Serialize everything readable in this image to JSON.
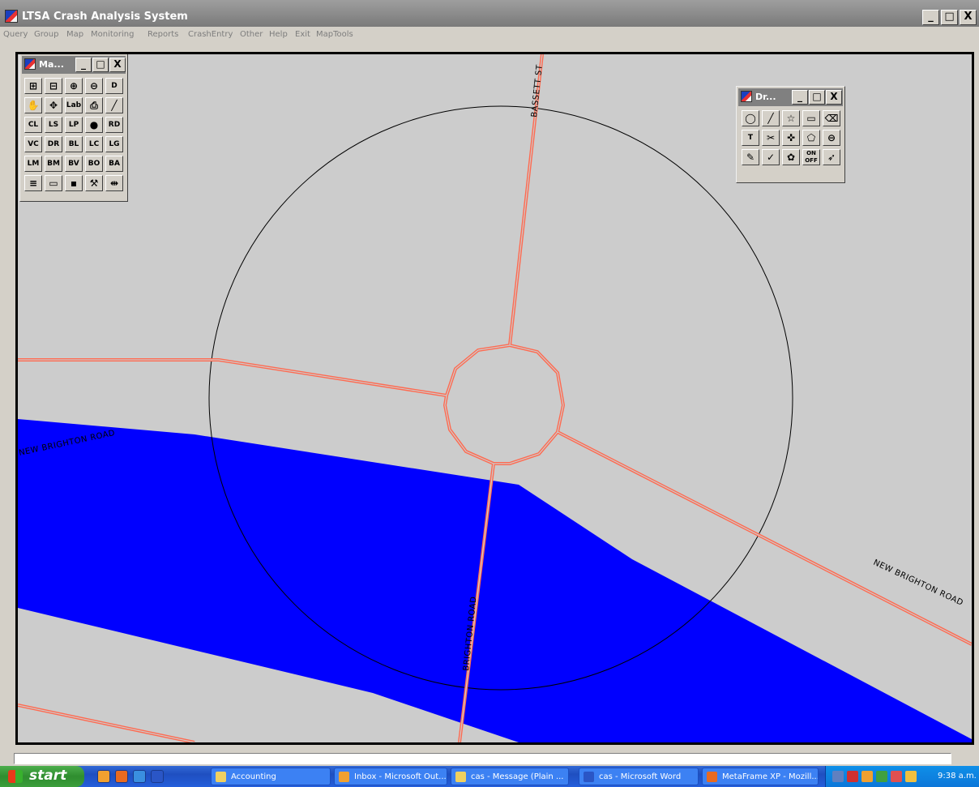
{
  "window": {
    "title": "LTSA Crash Analysis System",
    "minimize": "_",
    "maximize": "□",
    "close": "X"
  },
  "menu": [
    "Query",
    "Group",
    "Map",
    "Monitoring",
    "Reports",
    "CrashEntry",
    "Other",
    "Help",
    "Exit",
    "MapTools"
  ],
  "map": {
    "background_color": "#cccccc",
    "water_color": "#0000ff",
    "road_color": "#ff6a50",
    "labels": {
      "bassett": "BASSETT ST",
      "nbr_left": "NEW BRIGHTON ROAD",
      "nbr_right": "NEW BRIGHTON ROAD",
      "south": "BRIGHTON ROAD"
    }
  },
  "map_toolbox": {
    "title": "Ma...",
    "minimize": "_",
    "maximize": "□",
    "close": "X",
    "rows": [
      [
        "zoom-in-box",
        "zoom-out-box",
        "zoom-in",
        "zoom-out",
        "D"
      ],
      [
        "hand-pan",
        "move",
        "Lab",
        "print",
        "pen-line"
      ],
      [
        "CL",
        "LS",
        "LP",
        "globe",
        "RD"
      ],
      [
        "VC",
        "DR",
        "BL",
        "LC",
        "LG"
      ],
      [
        "LM",
        "BM",
        "BV",
        "BO",
        "BA"
      ],
      [
        "list",
        "monitor",
        "save",
        "tools",
        "split"
      ]
    ]
  },
  "draw_toolbox": {
    "title": "Dr...",
    "minimize": "_",
    "maximize": "□",
    "close": "X",
    "rows": [
      [
        "circle",
        "line",
        "polygon",
        "rectangle",
        "eraser"
      ],
      [
        "T",
        "scissors",
        "move-node",
        "select-shape",
        "zoom-select"
      ],
      [
        "highlighter",
        "node-add",
        "palette",
        "ON OFF",
        "arrow-tool"
      ]
    ]
  },
  "taskbar": {
    "start": "start",
    "tasks": [
      "Accounting",
      "Inbox - Microsoft Out...",
      "cas - Message (Plain ...",
      "cas - Microsoft Word",
      "MetaFrame XP - Mozill..."
    ],
    "clock": "9:38 a.m."
  }
}
